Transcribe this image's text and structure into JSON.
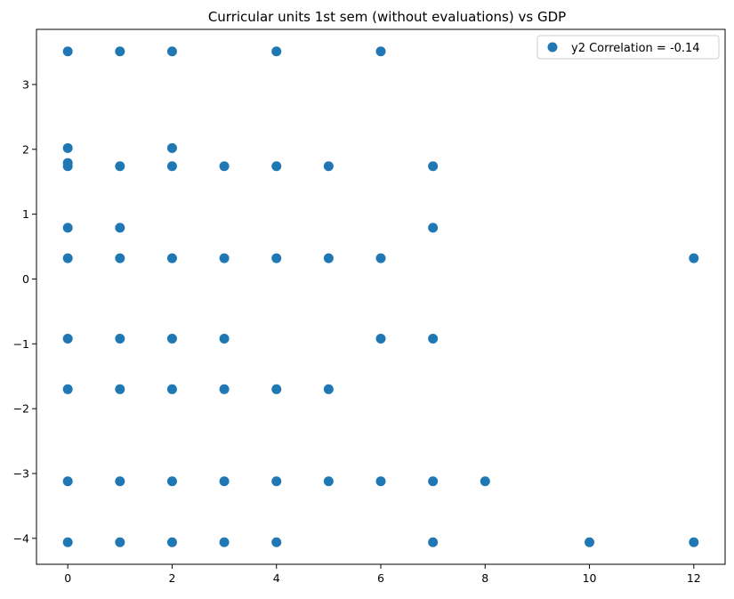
{
  "chart_data": {
    "type": "scatter",
    "title": "Curricular units 1st sem (without evaluations) vs GDP",
    "xlabel": "",
    "ylabel": "",
    "xlim": [
      -0.6,
      12.6
    ],
    "ylim": [
      -4.4,
      3.85
    ],
    "xticks": [
      0,
      2,
      4,
      6,
      8,
      10,
      12
    ],
    "yticks": [
      -4,
      -3,
      -2,
      -1,
      0,
      1,
      2,
      3
    ],
    "xtick_labels": [
      "0",
      "2",
      "4",
      "6",
      "8",
      "10",
      "12"
    ],
    "ytick_labels": [
      "−4",
      "−3",
      "−2",
      "−1",
      "0",
      "1",
      "2",
      "3"
    ],
    "grid": false,
    "legend_position": "top-right",
    "series": [
      {
        "name": "y2 Correlation = -0.14",
        "color": "#1f77b4",
        "points": [
          [
            0,
            3.51
          ],
          [
            1,
            3.51
          ],
          [
            2,
            3.51
          ],
          [
            4,
            3.51
          ],
          [
            6,
            3.51
          ],
          [
            0,
            2.02
          ],
          [
            2,
            2.02
          ],
          [
            0,
            1.79
          ],
          [
            0,
            1.74
          ],
          [
            1,
            1.74
          ],
          [
            2,
            1.74
          ],
          [
            3,
            1.74
          ],
          [
            4,
            1.74
          ],
          [
            5,
            1.74
          ],
          [
            7,
            1.74
          ],
          [
            0,
            0.79
          ],
          [
            1,
            0.79
          ],
          [
            7,
            0.79
          ],
          [
            0,
            0.32
          ],
          [
            1,
            0.32
          ],
          [
            2,
            0.32
          ],
          [
            3,
            0.32
          ],
          [
            4,
            0.32
          ],
          [
            5,
            0.32
          ],
          [
            6,
            0.32
          ],
          [
            12,
            0.32
          ],
          [
            0,
            -0.92
          ],
          [
            1,
            -0.92
          ],
          [
            2,
            -0.92
          ],
          [
            3,
            -0.92
          ],
          [
            6,
            -0.92
          ],
          [
            7,
            -0.92
          ],
          [
            0,
            -1.7
          ],
          [
            1,
            -1.7
          ],
          [
            2,
            -1.7
          ],
          [
            3,
            -1.7
          ],
          [
            4,
            -1.7
          ],
          [
            5,
            -1.7
          ],
          [
            0,
            -3.12
          ],
          [
            1,
            -3.12
          ],
          [
            2,
            -3.12
          ],
          [
            3,
            -3.12
          ],
          [
            4,
            -3.12
          ],
          [
            5,
            -3.12
          ],
          [
            6,
            -3.12
          ],
          [
            7,
            -3.12
          ],
          [
            8,
            -3.12
          ],
          [
            0,
            -4.06
          ],
          [
            1,
            -4.06
          ],
          [
            2,
            -4.06
          ],
          [
            3,
            -4.06
          ],
          [
            4,
            -4.06
          ],
          [
            7,
            -4.06
          ],
          [
            10,
            -4.06
          ],
          [
            12,
            -4.06
          ]
        ]
      }
    ]
  }
}
